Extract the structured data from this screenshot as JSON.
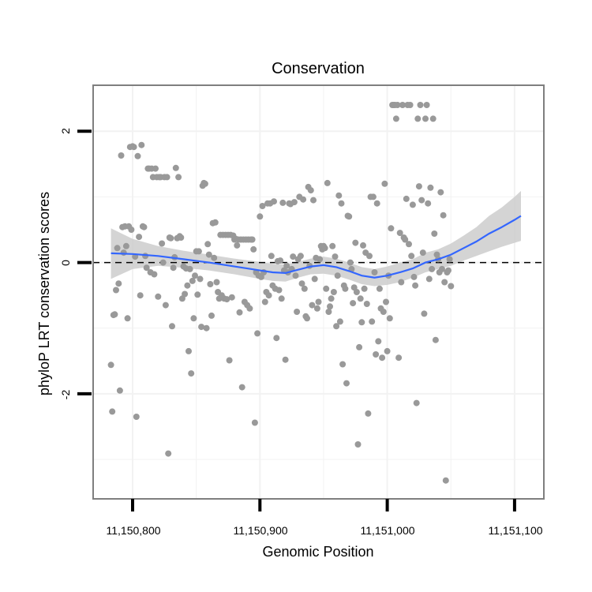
{
  "chart_data": {
    "type": "scatter",
    "title": "Conservation",
    "xlabel": "Genomic Position",
    "ylabel": "phyloP LRT conservation scores",
    "xlim": [
      11150769,
      11151123
    ],
    "ylim": [
      -3.6,
      2.7
    ],
    "x_ticks": [
      11150800,
      11150900,
      11151000,
      11151100
    ],
    "x_tick_labels": [
      "11,150,800",
      "11,150,900",
      "11,151,000",
      "11,151,100"
    ],
    "y_ticks": [
      -2,
      0,
      2
    ],
    "y_tick_labels": [
      "-2",
      "0",
      "2"
    ],
    "reference_line": {
      "y": 0,
      "style": "dashed"
    },
    "point_color": "#999999",
    "smooth_color": "#3366ff",
    "band_color": "#cccccc",
    "points": [
      [
        11150783,
        -1.56
      ],
      [
        11150784,
        -2.27
      ],
      [
        11150785,
        -0.8
      ],
      [
        11150786,
        -0.79
      ],
      [
        11150787,
        -0.42
      ],
      [
        11150788,
        0.22
      ],
      [
        11150789,
        -0.32
      ],
      [
        11150790,
        -1.95
      ],
      [
        11150791,
        1.63
      ],
      [
        11150792,
        0.54
      ],
      [
        11150793,
        0.15
      ],
      [
        11150794,
        0.55
      ],
      [
        11150795,
        0.25
      ],
      [
        11150796,
        -0.85
      ],
      [
        11150797,
        0.55
      ],
      [
        11150798,
        1.76
      ],
      [
        11150799,
        0.5
      ],
      [
        11150800,
        1.77
      ],
      [
        11150801,
        1.76
      ],
      [
        11150802,
        0.09
      ],
      [
        11150803,
        -2.35
      ],
      [
        11150804,
        1.62
      ],
      [
        11150805,
        0.39
      ],
      [
        11150806,
        -0.5
      ],
      [
        11150807,
        1.79
      ],
      [
        11150808,
        0.55
      ],
      [
        11150809,
        0.54
      ],
      [
        11150810,
        0.1
      ],
      [
        11150811,
        -0.08
      ],
      [
        11150812,
        1.43
      ],
      [
        11150813,
        1.43
      ],
      [
        11150814,
        -0.15
      ],
      [
        11150815,
        1.43
      ],
      [
        11150816,
        1.3
      ],
      [
        11150817,
        -0.18
      ],
      [
        11150818,
        1.43
      ],
      [
        11150819,
        1.3
      ],
      [
        11150820,
        -0.52
      ],
      [
        11150821,
        1.3
      ],
      [
        11150822,
        1.3
      ],
      [
        11150823,
        0.29
      ],
      [
        11150824,
        0.0
      ],
      [
        11150825,
        1.3
      ],
      [
        11150826,
        -0.65
      ],
      [
        11150827,
        1.3
      ],
      [
        11150828,
        -2.91
      ],
      [
        11150829,
        0.38
      ],
      [
        11150830,
        0.37
      ],
      [
        11150831,
        -0.97
      ],
      [
        11150832,
        -0.08
      ],
      [
        11150833,
        0.08
      ],
      [
        11150834,
        1.44
      ],
      [
        11150835,
        0.37
      ],
      [
        11150836,
        1.3
      ],
      [
        11150837,
        0.4
      ],
      [
        11150838,
        0.38
      ],
      [
        11150839,
        -0.55
      ],
      [
        11150840,
        -0.06
      ],
      [
        11150841,
        -0.48
      ],
      [
        11150842,
        -0.09
      ],
      [
        11150843,
        -0.35
      ],
      [
        11150844,
        -1.35
      ],
      [
        11150845,
        -0.1
      ],
      [
        11150846,
        -1.69
      ],
      [
        11150847,
        -0.28
      ],
      [
        11150848,
        -0.85
      ],
      [
        11150849,
        -0.2
      ],
      [
        11150850,
        0.17
      ],
      [
        11150851,
        -0.49
      ],
      [
        11150852,
        0.17
      ],
      [
        11150853,
        -0.25
      ],
      [
        11150854,
        -0.98
      ],
      [
        11150855,
        1.17
      ],
      [
        11150856,
        1.21
      ],
      [
        11150857,
        1.2
      ],
      [
        11150858,
        -1.0
      ],
      [
        11150859,
        0.28
      ],
      [
        11150860,
        0.12
      ],
      [
        11150861,
        -0.33
      ],
      [
        11150862,
        -0.81
      ],
      [
        11150863,
        0.6
      ],
      [
        11150864,
        0.07
      ],
      [
        11150865,
        0.61
      ],
      [
        11150866,
        -0.3
      ],
      [
        11150867,
        -0.45
      ],
      [
        11150868,
        -0.55
      ],
      [
        11150869,
        0.42
      ],
      [
        11150870,
        -0.5
      ],
      [
        11150871,
        0.42
      ],
      [
        11150872,
        -0.55
      ],
      [
        11150873,
        0.42
      ],
      [
        11150874,
        -0.56
      ],
      [
        11150875,
        0.42
      ],
      [
        11150876,
        -1.49
      ],
      [
        11150877,
        0.42
      ],
      [
        11150878,
        -0.53
      ],
      [
        11150879,
        0.41
      ],
      [
        11150880,
        0.35
      ],
      [
        11150881,
        0.36
      ],
      [
        11150882,
        0.26
      ],
      [
        11150883,
        0.35
      ],
      [
        11150884,
        -0.76
      ],
      [
        11150885,
        0.35
      ],
      [
        11150886,
        -1.9
      ],
      [
        11150887,
        0.35
      ],
      [
        11150888,
        -0.6
      ],
      [
        11150889,
        0.35
      ],
      [
        11150890,
        -0.65
      ],
      [
        11150891,
        0.35
      ],
      [
        11150892,
        -0.7
      ],
      [
        11150893,
        0.35
      ],
      [
        11150894,
        0.35
      ],
      [
        11150895,
        0.2
      ],
      [
        11150896,
        -2.44
      ],
      [
        11150897,
        -0.15
      ],
      [
        11150898,
        -1.08
      ],
      [
        11150899,
        -0.2
      ],
      [
        11150900,
        0.7
      ],
      [
        11150901,
        -0.22
      ],
      [
        11150902,
        0.86
      ],
      [
        11150903,
        -0.15
      ],
      [
        11150904,
        -0.6
      ],
      [
        11150905,
        -0.45
      ],
      [
        11150906,
        0.9
      ],
      [
        11150907,
        -0.5
      ],
      [
        11150908,
        0.9
      ],
      [
        11150909,
        0.1
      ],
      [
        11150910,
        -0.35
      ],
      [
        11150911,
        0.93
      ],
      [
        11150912,
        -0.4
      ],
      [
        11150913,
        -1.15
      ],
      [
        11150914,
        0.02
      ],
      [
        11150915,
        -0.42
      ],
      [
        11150916,
        0.03
      ],
      [
        11150917,
        -0.55
      ],
      [
        11150918,
        0.91
      ],
      [
        11150919,
        -0.12
      ],
      [
        11150920,
        -1.48
      ],
      [
        11150921,
        -0.05
      ],
      [
        11150922,
        -0.15
      ],
      [
        11150923,
        0.9
      ],
      [
        11150924,
        0.89
      ],
      [
        11150925,
        -0.1
      ],
      [
        11150926,
        0.09
      ],
      [
        11150927,
        0.92
      ],
      [
        11150928,
        -0.2
      ],
      [
        11150929,
        -0.75
      ],
      [
        11150930,
        0.05
      ],
      [
        11150931,
        1.0
      ],
      [
        11150932,
        0.1
      ],
      [
        11150933,
        -0.32
      ],
      [
        11150934,
        0.96
      ],
      [
        11150935,
        -0.4
      ],
      [
        11150936,
        -0.82
      ],
      [
        11150937,
        -0.85
      ],
      [
        11150938,
        1.15
      ],
      [
        11150939,
        -0.05
      ],
      [
        11150940,
        1.1
      ],
      [
        11150941,
        -0.65
      ],
      [
        11150942,
        0.95
      ],
      [
        11150943,
        -0.25
      ],
      [
        11150944,
        0.07
      ],
      [
        11150945,
        -0.7
      ],
      [
        11150946,
        -0.6
      ],
      [
        11150947,
        0.05
      ],
      [
        11150948,
        0.25
      ],
      [
        11150949,
        0.2
      ],
      [
        11150950,
        0.25
      ],
      [
        11150951,
        0.22
      ],
      [
        11150952,
        -0.4
      ],
      [
        11150953,
        1.21
      ],
      [
        11150954,
        -0.75
      ],
      [
        11150955,
        -0.67
      ],
      [
        11150956,
        -0.55
      ],
      [
        11150957,
        0.25
      ],
      [
        11150958,
        -0.45
      ],
      [
        11150959,
        0.09
      ],
      [
        11150960,
        -0.97
      ],
      [
        11150961,
        -0.2
      ],
      [
        11150962,
        1.02
      ],
      [
        11150963,
        -0.9
      ],
      [
        11150964,
        0.9
      ],
      [
        11150965,
        -1.55
      ],
      [
        11150966,
        -0.35
      ],
      [
        11150967,
        -0.4
      ],
      [
        11150968,
        -1.84
      ],
      [
        11150969,
        0.71
      ],
      [
        11150970,
        0.7
      ],
      [
        11150971,
        0.0
      ],
      [
        11150972,
        -0.1
      ],
      [
        11150973,
        -0.62
      ],
      [
        11150974,
        -0.38
      ],
      [
        11150975,
        0.3
      ],
      [
        11150976,
        -0.45
      ],
      [
        11150977,
        -2.77
      ],
      [
        11150978,
        -1.29
      ],
      [
        11150979,
        -0.55
      ],
      [
        11150980,
        -0.91
      ],
      [
        11150981,
        0.26
      ],
      [
        11150982,
        -0.4
      ],
      [
        11150983,
        0.15
      ],
      [
        11150984,
        -0.63
      ],
      [
        11150985,
        -2.3
      ],
      [
        11150986,
        0.1
      ],
      [
        11150987,
        1.0
      ],
      [
        11150988,
        -0.9
      ],
      [
        11150989,
        1.0
      ],
      [
        11150990,
        -0.15
      ],
      [
        11150991,
        -1.4
      ],
      [
        11150992,
        0.9
      ],
      [
        11150993,
        -1.2
      ],
      [
        11150994,
        -0.4
      ],
      [
        11150995,
        -0.7
      ],
      [
        11150996,
        -1.45
      ],
      [
        11150997,
        -0.75
      ],
      [
        11150998,
        1.2
      ],
      [
        11150999,
        -0.6
      ],
      [
        11151000,
        -1.35
      ],
      [
        11151001,
        -0.2
      ],
      [
        11151002,
        -0.85
      ],
      [
        11151003,
        0.52
      ],
      [
        11151004,
        2.4
      ],
      [
        11151005,
        2.4
      ],
      [
        11151006,
        2.4
      ],
      [
        11151007,
        2.19
      ],
      [
        11151008,
        2.4
      ],
      [
        11151009,
        -1.45
      ],
      [
        11151010,
        0.45
      ],
      [
        11151011,
        -0.3
      ],
      [
        11151012,
        2.4
      ],
      [
        11151013,
        0.38
      ],
      [
        11151014,
        0.35
      ],
      [
        11151015,
        0.97
      ],
      [
        11151016,
        2.4
      ],
      [
        11151017,
        0.28
      ],
      [
        11151018,
        2.4
      ],
      [
        11151019,
        0.1
      ],
      [
        11151020,
        0.88
      ],
      [
        11151021,
        -0.22
      ],
      [
        11151022,
        -0.35
      ],
      [
        11151023,
        -2.14
      ],
      [
        11151024,
        2.19
      ],
      [
        11151025,
        1.16
      ],
      [
        11151026,
        2.4
      ],
      [
        11151027,
        0.95
      ],
      [
        11151028,
        0.15
      ],
      [
        11151029,
        -0.78
      ],
      [
        11151030,
        2.19
      ],
      [
        11151031,
        2.4
      ],
      [
        11151032,
        0.9
      ],
      [
        11151033,
        -0.25
      ],
      [
        11151034,
        1.14
      ],
      [
        11151035,
        -0.1
      ],
      [
        11151036,
        2.19
      ],
      [
        11151037,
        0.44
      ],
      [
        11151038,
        -1.18
      ],
      [
        11151039,
        0.12
      ],
      [
        11151040,
        0.05
      ],
      [
        11151041,
        -0.15
      ],
      [
        11151042,
        1.07
      ],
      [
        11151043,
        -0.1
      ],
      [
        11151044,
        0.72
      ],
      [
        11151045,
        -0.3
      ],
      [
        11151046,
        -3.32
      ],
      [
        11151047,
        -0.15
      ],
      [
        11151048,
        -0.12
      ],
      [
        11151049,
        0.05
      ],
      [
        11151050,
        -0.36
      ]
    ],
    "smooth": {
      "x": [
        11150783,
        11150800,
        11150820,
        11150840,
        11150860,
        11150880,
        11150900,
        11150910,
        11150920,
        11150930,
        11150940,
        11150950,
        11150960,
        11150970,
        11150980,
        11150990,
        11151000,
        11151010,
        11151020,
        11151030,
        11151040,
        11151050,
        11151060,
        11151070,
        11151080,
        11151090,
        11151100,
        11151105
      ],
      "y": [
        0.14,
        0.13,
        0.1,
        0.05,
        0.0,
        -0.06,
        -0.12,
        -0.15,
        -0.16,
        -0.11,
        -0.06,
        -0.04,
        -0.07,
        -0.13,
        -0.2,
        -0.23,
        -0.2,
        -0.15,
        -0.09,
        0.0,
        0.05,
        0.12,
        0.22,
        0.32,
        0.44,
        0.54,
        0.65,
        0.71
      ],
      "lower": [
        -0.25,
        -0.1,
        -0.05,
        -0.08,
        -0.12,
        -0.18,
        -0.25,
        -0.28,
        -0.29,
        -0.23,
        -0.18,
        -0.17,
        -0.2,
        -0.26,
        -0.33,
        -0.36,
        -0.34,
        -0.3,
        -0.23,
        -0.15,
        -0.1,
        -0.05,
        0.03,
        0.1,
        0.17,
        0.24,
        0.3,
        0.33
      ],
      "upper": [
        0.52,
        0.36,
        0.25,
        0.18,
        0.12,
        0.06,
        0.01,
        -0.02,
        -0.03,
        0.01,
        0.06,
        0.09,
        0.06,
        0.0,
        -0.07,
        -0.1,
        -0.06,
        0.0,
        0.05,
        0.15,
        0.2,
        0.29,
        0.41,
        0.54,
        0.71,
        0.84,
        1.0,
        1.09
      ]
    }
  }
}
